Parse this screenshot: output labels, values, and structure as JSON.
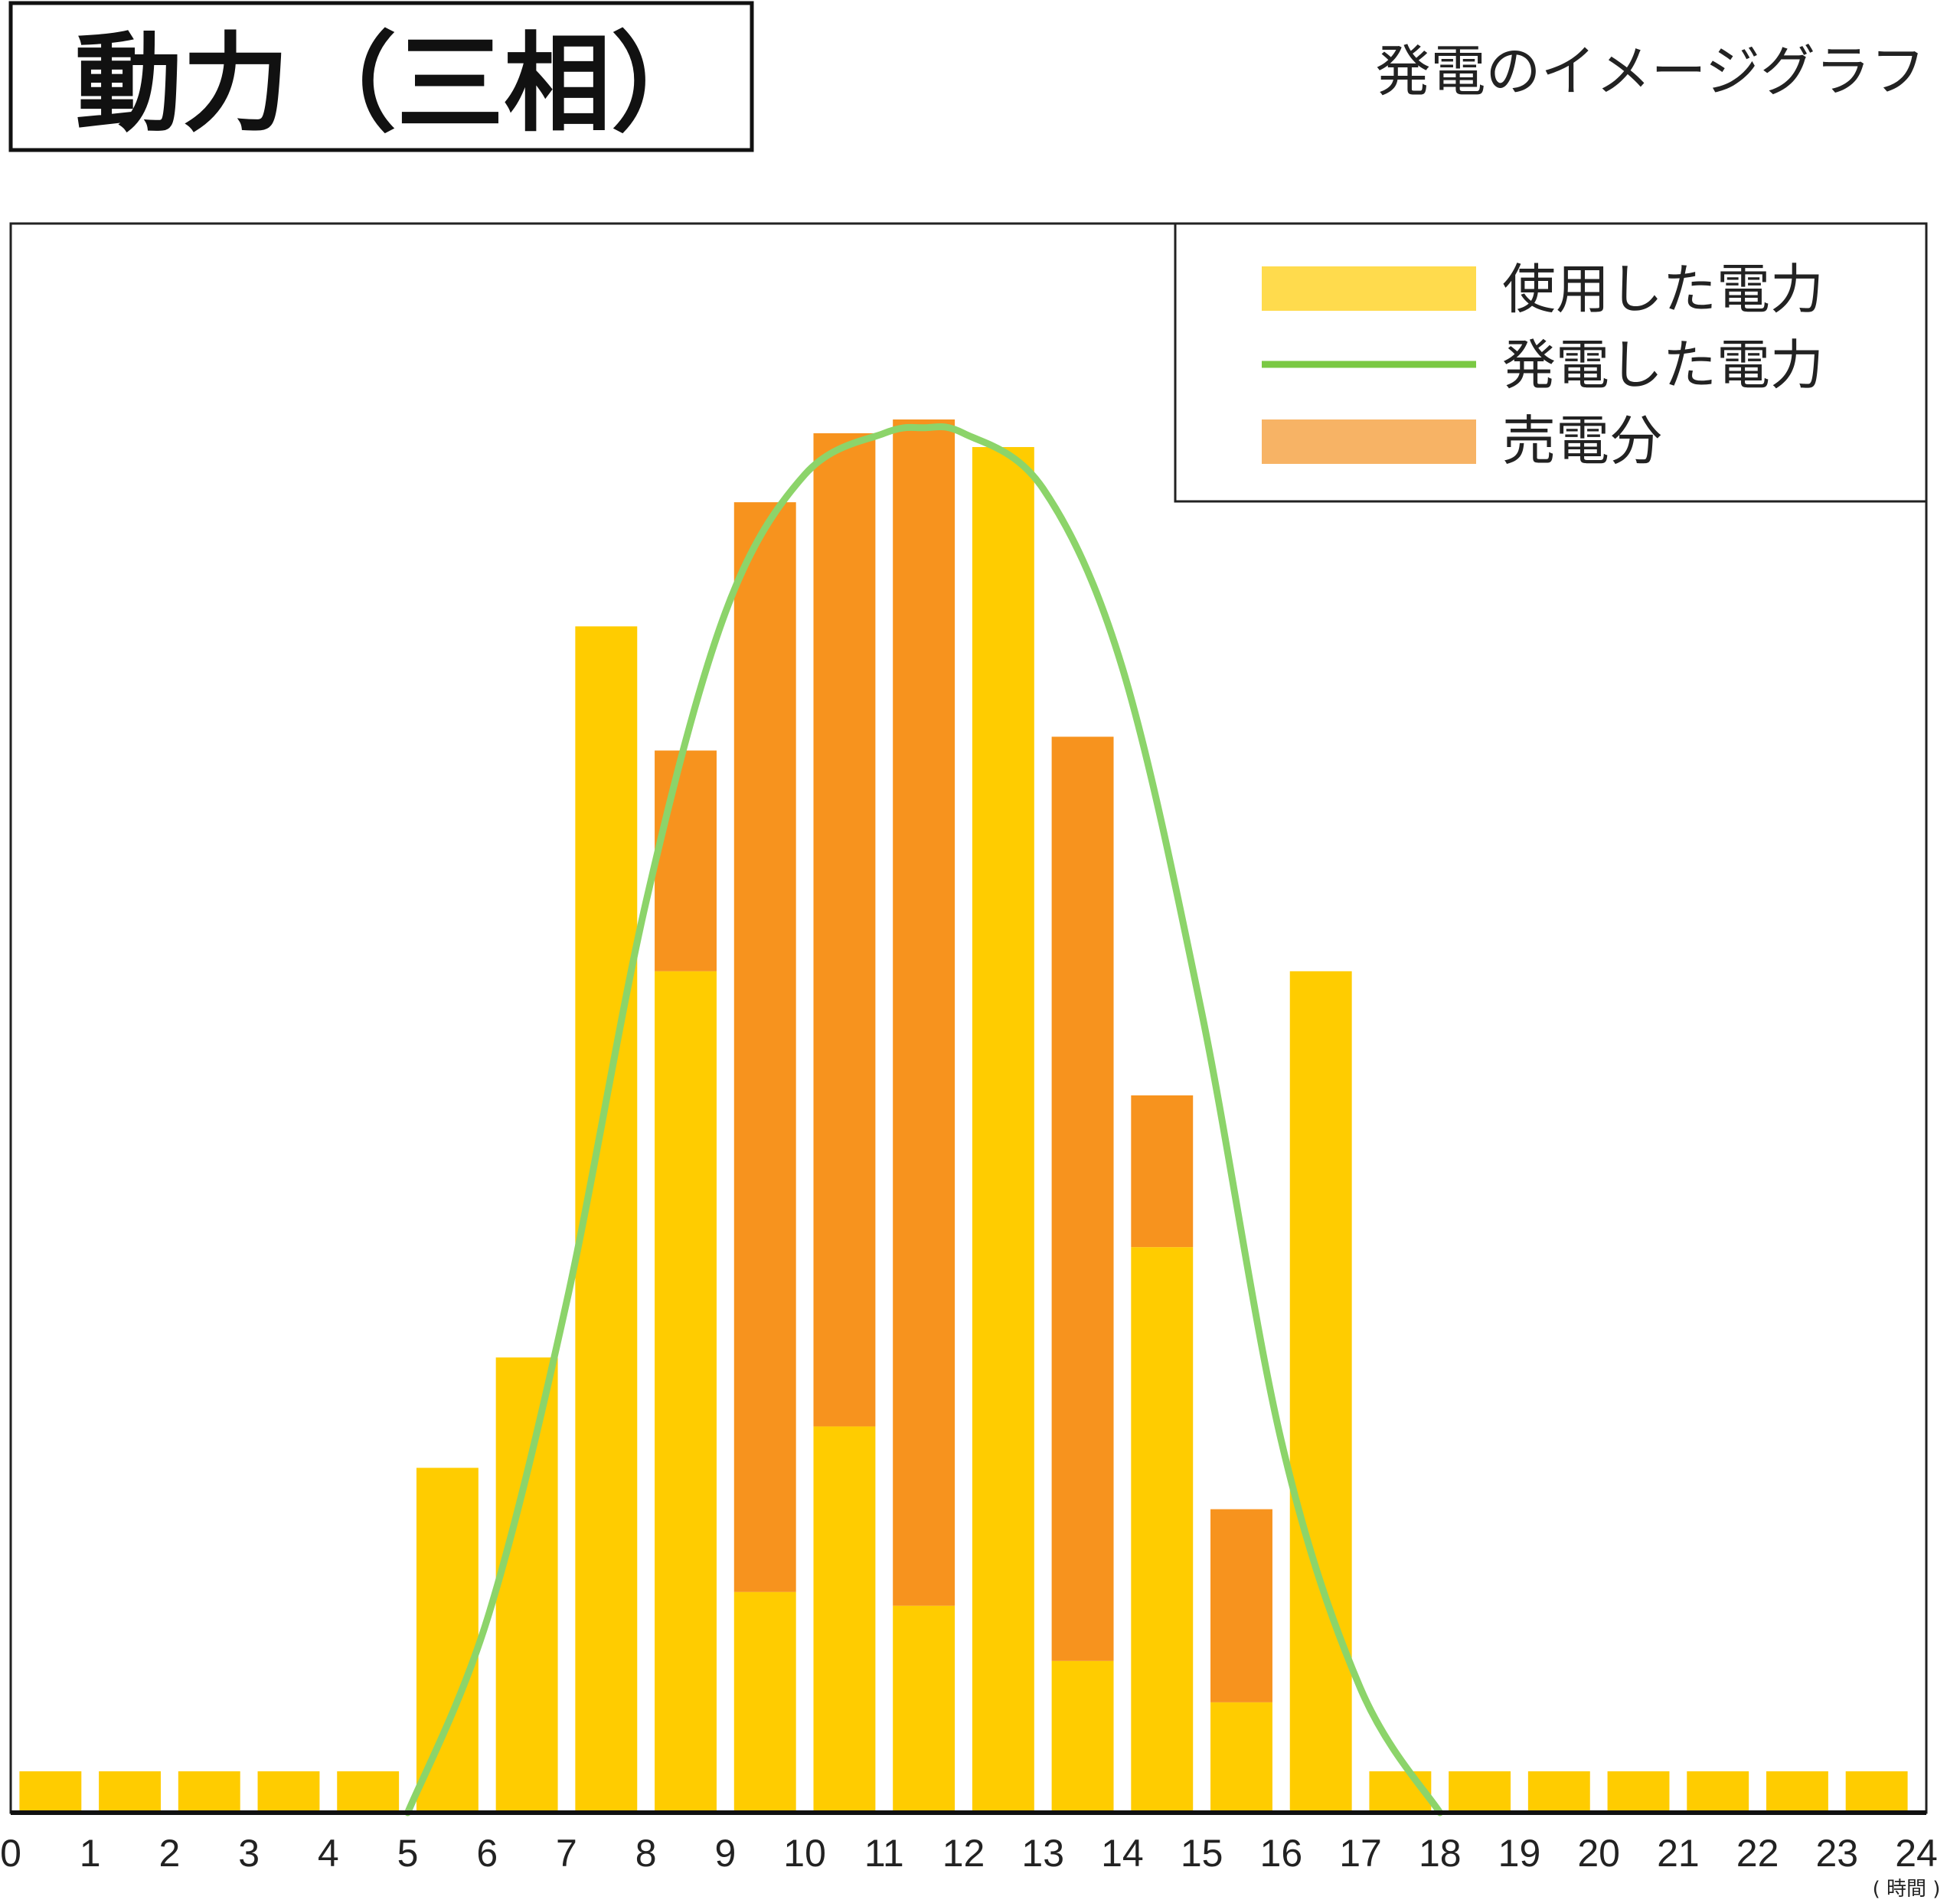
{
  "header": {
    "title": "動力（三相）",
    "subtitle": "発電のイメージグラフ"
  },
  "legend": [
    {
      "label": "使用した電力",
      "kind": "bar",
      "color": "#ffdb4d"
    },
    {
      "label": "発電した電力",
      "kind": "line",
      "color": "#7ac943"
    },
    {
      "label": "売電分",
      "kind": "bar",
      "color": "#f7b365"
    }
  ],
  "chart_data": {
    "type": "bar",
    "stacked": true,
    "title": "",
    "xlabel": "",
    "ylabel": "",
    "x_unit": "( 時間 )",
    "x_ticks": [
      "0",
      "1",
      "2",
      "3",
      "4",
      "5",
      "6",
      "7",
      "8",
      "9",
      "10",
      "11",
      "12",
      "13",
      "14",
      "15",
      "16",
      "17",
      "18",
      "19",
      "20",
      "21",
      "22",
      "23",
      "24"
    ],
    "categories": [
      "1",
      "2",
      "3",
      "4",
      "5",
      "6",
      "7",
      "8",
      "9",
      "10",
      "11",
      "12",
      "13",
      "14",
      "15",
      "16",
      "17",
      "18",
      "19",
      "20",
      "21",
      "22",
      "23",
      "24"
    ],
    "ylim": [
      0,
      100
    ],
    "series": [
      {
        "name": "使用した電力",
        "color": "#ffcc00",
        "values": [
          3,
          3,
          3,
          3,
          3,
          25,
          33,
          86,
          61,
          16,
          28,
          15,
          99,
          11,
          41,
          8,
          61,
          3,
          3,
          3,
          3,
          3,
          3,
          3
        ]
      },
      {
        "name": "売電分",
        "color": "#f7931e",
        "values": [
          0,
          0,
          0,
          0,
          0,
          0,
          0,
          0,
          16,
          79,
          72,
          86,
          0,
          67,
          11,
          14,
          0,
          0,
          0,
          0,
          0,
          0,
          0,
          0
        ]
      }
    ],
    "line_series": {
      "name": "発電した電力",
      "color": "#8cd46a",
      "x": [
        5,
        6,
        7,
        8,
        9,
        10,
        11,
        11.5,
        12,
        13,
        14,
        15,
        16,
        17,
        18
      ],
      "values": [
        0,
        14,
        37,
        66,
        87,
        97,
        100,
        100.4,
        100,
        96,
        83,
        58,
        27,
        9,
        0
      ]
    },
    "grid": false,
    "legend_position": "top-right"
  }
}
